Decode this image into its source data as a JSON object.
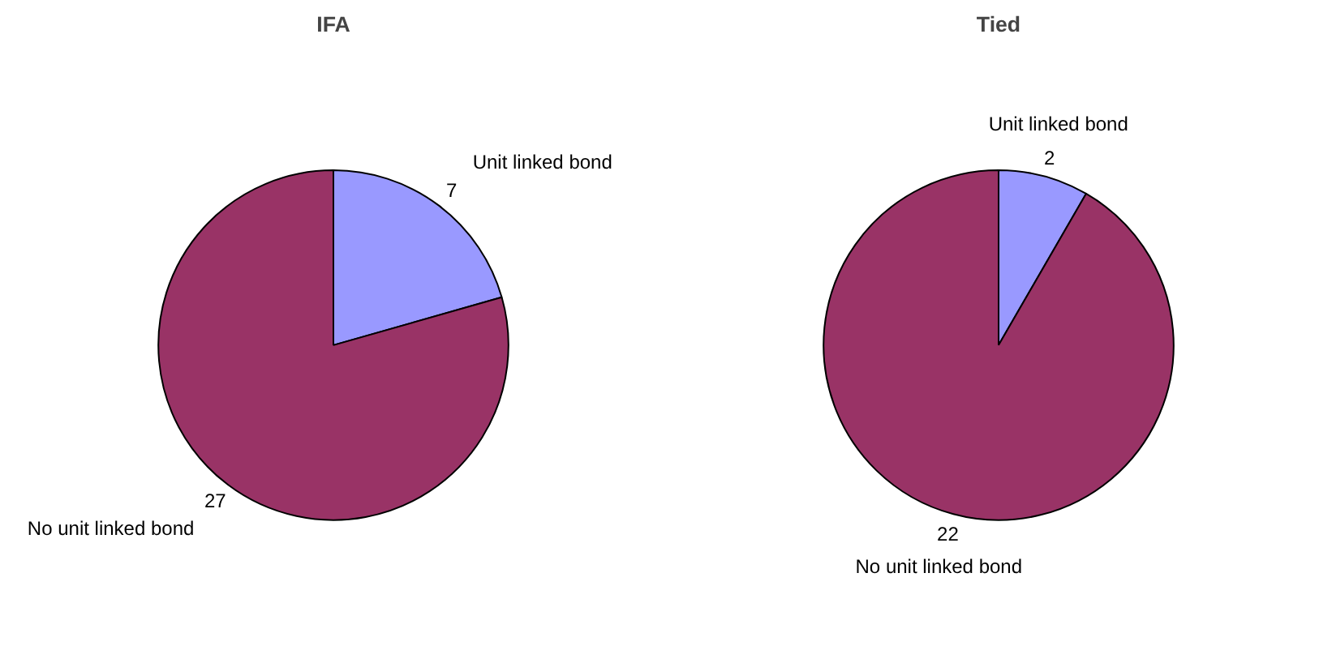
{
  "chart_data": [
    {
      "type": "pie",
      "title": "IFA",
      "categories": [
        "Unit linked bond",
        "No unit linked bond"
      ],
      "values": [
        7,
        27
      ],
      "colors": [
        "#9999ff",
        "#993366"
      ],
      "data_labels": true,
      "legend": false
    },
    {
      "type": "pie",
      "title": "Tied",
      "categories": [
        "Unit linked bond",
        "No unit linked bond"
      ],
      "values": [
        2,
        22
      ],
      "colors": [
        "#9999ff",
        "#993366"
      ],
      "data_labels": true,
      "legend": false
    }
  ]
}
